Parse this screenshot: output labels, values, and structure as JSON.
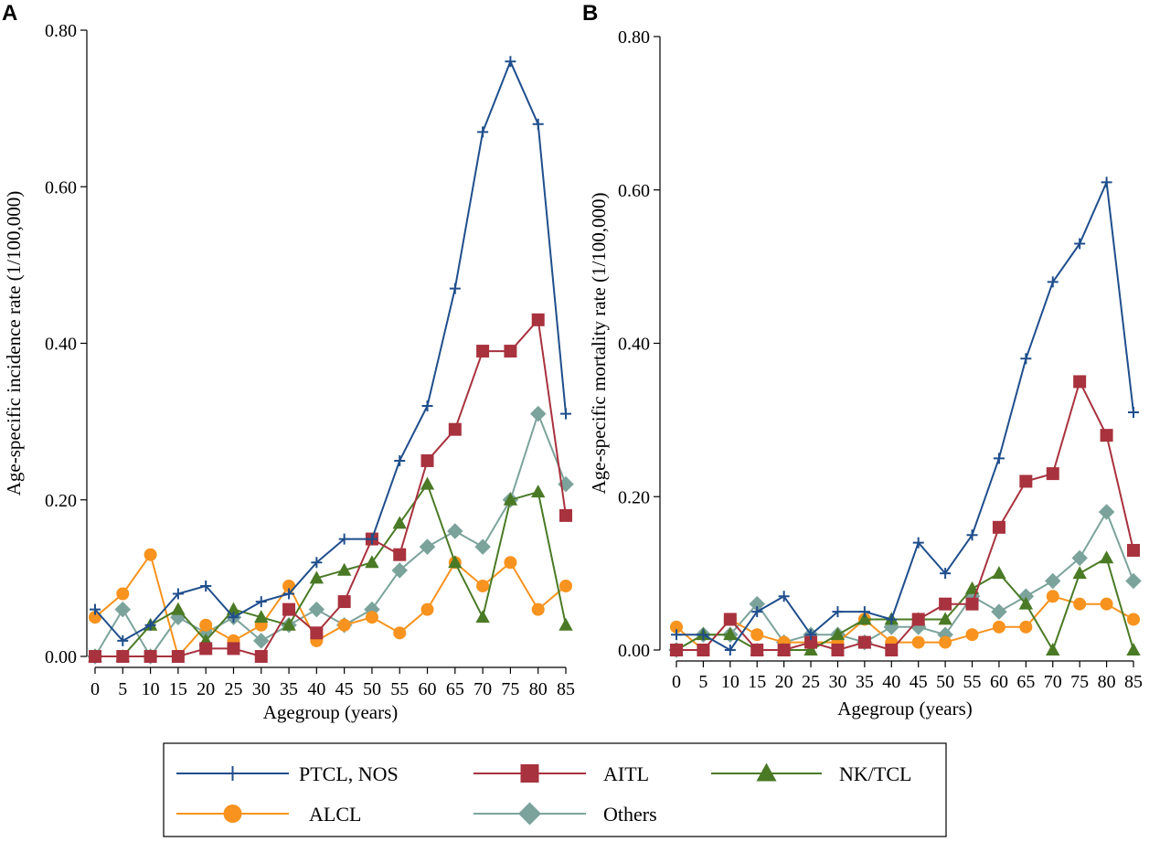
{
  "chart_data": [
    {
      "type": "line",
      "panel": "A",
      "title": "",
      "xlabel": "Agegroup (years)",
      "ylabel": "Age-specific incidence rate (1/100,000)",
      "categories": [
        "0",
        "5",
        "10",
        "15",
        "20",
        "25",
        "30",
        "35",
        "40",
        "45",
        "50",
        "55",
        "60",
        "65",
        "70",
        "75",
        "80",
        "85"
      ],
      "ylim": [
        0,
        0.8
      ],
      "yticks": [
        "0.00",
        "0.20",
        "0.40",
        "0.60",
        "0.80"
      ],
      "series": [
        {
          "name": "PTCL, NOS",
          "values": [
            0.06,
            0.02,
            0.04,
            0.08,
            0.09,
            0.05,
            0.07,
            0.08,
            0.12,
            0.15,
            0.15,
            0.25,
            0.32,
            0.47,
            0.67,
            0.76,
            0.68,
            0.31
          ]
        },
        {
          "name": "AITL",
          "values": [
            0.0,
            0.0,
            0.0,
            0.0,
            0.01,
            0.01,
            0.0,
            0.06,
            0.03,
            0.07,
            0.15,
            0.13,
            0.25,
            0.29,
            0.39,
            0.39,
            0.43,
            0.18
          ]
        },
        {
          "name": "NK/TCL",
          "values": [
            0.0,
            0.0,
            0.04,
            0.06,
            0.02,
            0.06,
            0.05,
            0.04,
            0.1,
            0.11,
            0.12,
            0.17,
            0.22,
            0.12,
            0.05,
            0.2,
            0.21,
            0.04
          ]
        },
        {
          "name": "ALCL",
          "values": [
            0.05,
            0.08,
            0.13,
            0.0,
            0.04,
            0.02,
            0.04,
            0.09,
            0.02,
            0.04,
            0.05,
            0.03,
            0.06,
            0.12,
            0.09,
            0.12,
            0.06,
            0.09
          ]
        },
        {
          "name": "Others",
          "values": [
            0.0,
            0.06,
            0.0,
            0.05,
            0.03,
            0.05,
            0.02,
            0.04,
            0.06,
            0.04,
            0.06,
            0.11,
            0.14,
            0.16,
            0.14,
            0.2,
            0.31,
            0.22
          ]
        }
      ]
    },
    {
      "type": "line",
      "panel": "B",
      "title": "",
      "xlabel": "Agegroup (years)",
      "ylabel": "Age-specific mortality rate (1/100,000)",
      "categories": [
        "0",
        "5",
        "10",
        "15",
        "20",
        "25",
        "30",
        "35",
        "40",
        "45",
        "50",
        "55",
        "60",
        "65",
        "70",
        "75",
        "80",
        "85"
      ],
      "ylim": [
        0,
        0.8
      ],
      "yticks": [
        "0.00",
        "0.20",
        "0.40",
        "0.60",
        "0.80"
      ],
      "series": [
        {
          "name": "PTCL, NOS",
          "values": [
            0.02,
            0.02,
            0.0,
            0.05,
            0.07,
            0.02,
            0.05,
            0.05,
            0.04,
            0.14,
            0.1,
            0.15,
            0.25,
            0.38,
            0.48,
            0.53,
            0.61,
            0.31
          ]
        },
        {
          "name": "AITL",
          "values": [
            0.0,
            0.0,
            0.04,
            0.0,
            0.0,
            0.01,
            0.0,
            0.01,
            0.0,
            0.04,
            0.06,
            0.06,
            0.16,
            0.22,
            0.23,
            0.35,
            0.28,
            0.13
          ]
        },
        {
          "name": "NK/TCL",
          "values": [
            0.0,
            0.02,
            0.02,
            0.0,
            0.0,
            0.0,
            0.02,
            0.04,
            0.04,
            0.04,
            0.04,
            0.08,
            0.1,
            0.06,
            0.0,
            0.1,
            0.12,
            0.0
          ]
        },
        {
          "name": "ALCL",
          "values": [
            0.03,
            0.0,
            0.04,
            0.02,
            0.01,
            0.01,
            0.01,
            0.04,
            0.01,
            0.01,
            0.01,
            0.02,
            0.03,
            0.03,
            0.07,
            0.06,
            0.06,
            0.04
          ]
        },
        {
          "name": "Others",
          "values": [
            0.0,
            0.02,
            0.02,
            0.06,
            0.01,
            0.02,
            0.02,
            0.01,
            0.03,
            0.03,
            0.02,
            0.07,
            0.05,
            0.07,
            0.09,
            0.12,
            0.18,
            0.09
          ]
        }
      ]
    }
  ],
  "legend": [
    {
      "label": "PTCL, NOS",
      "marker": "plus",
      "color": "#1f4e8c"
    },
    {
      "label": "AITL",
      "marker": "square",
      "color": "#a8323e"
    },
    {
      "label": "NK/TCL",
      "marker": "triangle",
      "color": "#4a7a25"
    },
    {
      "label": "ALCL",
      "marker": "circle",
      "color": "#f7931e"
    },
    {
      "label": "Others",
      "marker": "diamond",
      "color": "#7ba39b"
    }
  ]
}
